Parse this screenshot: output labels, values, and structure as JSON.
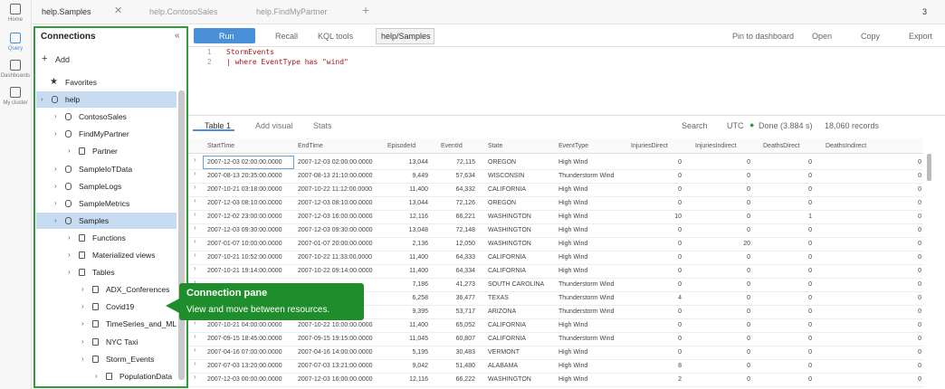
{
  "nav": [
    "Home",
    "Query",
    "Dashboards",
    "My cluster"
  ],
  "tabs": [
    "help.Samples",
    "help.ContosoSales",
    "help.FindMyPartner"
  ],
  "tab_count": "3",
  "toolbar": {
    "run": "Run",
    "recall": "Recall",
    "kql": "KQL tools",
    "scope": "help/Samples",
    "pin": "Pin to dashboard",
    "open": "Open",
    "copy": "Copy",
    "export": "Export"
  },
  "editor": {
    "line_numbers": [
      "1",
      "2"
    ],
    "lines": [
      "StormEvents",
      "| where EventType has \"wind\""
    ]
  },
  "connections": {
    "title": "Connections",
    "add": "Add",
    "tree": [
      {
        "label": "Favorites",
        "level": 0
      },
      {
        "label": "help",
        "level": 0
      },
      {
        "label": "ContosoSales",
        "level": 1
      },
      {
        "label": "FindMyPartner",
        "level": 1
      },
      {
        "label": "Partner",
        "level": 2
      },
      {
        "label": "SampleIoTData",
        "level": 1
      },
      {
        "label": "SampleLogs",
        "level": 1
      },
      {
        "label": "SampleMetrics",
        "level": 1
      },
      {
        "label": "Samples",
        "level": 1
      },
      {
        "label": "Functions",
        "level": 2
      },
      {
        "label": "Materialized views",
        "level": 2
      },
      {
        "label": "Tables",
        "level": 2
      },
      {
        "label": "ADX_Conferences",
        "level": 3
      },
      {
        "label": "Covid19",
        "level": 3
      },
      {
        "label": "TimeSeries_and_ML",
        "level": 3
      },
      {
        "label": "NYC Taxi",
        "level": 3
      },
      {
        "label": "Storm_Events",
        "level": 3
      },
      {
        "label": "PopulationData",
        "level": 4
      }
    ]
  },
  "tooltip": {
    "title": "Connection pane",
    "text": "View and move between resources."
  },
  "results": {
    "tab": "Table 1",
    "add_visual": "Add visual",
    "stats": "Stats",
    "search": "Search",
    "utc": "UTC",
    "done": "Done (3.884 s)",
    "records": "18,060 records"
  },
  "table": {
    "columns": [
      "StartTime",
      "EndTime",
      "EpisodeId",
      "EventId",
      "State",
      "EventType",
      "InjuriesDirect",
      "InjuriesIndirect",
      "DeathsDirect",
      "DeathsIndirect"
    ],
    "rows": [
      [
        "2007-12-03 02:00:00.0000",
        "2007-12-03 02:00:00.0000",
        "13,044",
        "72,115",
        "OREGON",
        "High Wind",
        "0",
        "0",
        "0",
        "0"
      ],
      [
        "2007-08-13 20:35:00.0000",
        "2007-08-13 21:10:00.0000",
        "9,449",
        "57,634",
        "WISCONSIN",
        "Thunderstorm Wind",
        "0",
        "0",
        "0",
        "0"
      ],
      [
        "2007-10-21 03:18:00.0000",
        "2007-10-22 11:12:00.0000",
        "11,400",
        "64,332",
        "CALIFORNIA",
        "High Wind",
        "0",
        "0",
        "0",
        "0"
      ],
      [
        "2007-12-03 08:10:00.0000",
        "2007-12-03 08:10:00.0000",
        "13,044",
        "72,126",
        "OREGON",
        "High Wind",
        "0",
        "0",
        "0",
        "0"
      ],
      [
        "2007-12-02 23:00:00.0000",
        "2007-12-03 16:00:00.0000",
        "12,116",
        "66,221",
        "WASHINGTON",
        "High Wind",
        "10",
        "0",
        "1",
        "0"
      ],
      [
        "2007-12-03 09:30:00.0000",
        "2007-12-03 09:30:00.0000",
        "13,048",
        "72,148",
        "WASHINGTON",
        "High Wind",
        "0",
        "0",
        "0",
        "0"
      ],
      [
        "2007-01-07 10:00:00.0000",
        "2007-01-07 20:00:00.0000",
        "2,136",
        "12,050",
        "WASHINGTON",
        "High Wind",
        "0",
        "20",
        "0",
        "0"
      ],
      [
        "2007-10-21 10:52:00.0000",
        "2007-10-22 11:33:00.0000",
        "11,400",
        "64,333",
        "CALIFORNIA",
        "High Wind",
        "0",
        "0",
        "0",
        "0"
      ],
      [
        "2007-10-21 19:14:00.0000",
        "2007-10-22 09:14:00.0000",
        "11,400",
        "64,334",
        "CALIFORNIA",
        "High Wind",
        "0",
        "0",
        "0",
        "0"
      ],
      [
        null,
        null,
        "7,186",
        "41,273",
        "SOUTH CAROLINA",
        "Thunderstorm Wind",
        "0",
        "0",
        "0",
        "0"
      ],
      [
        null,
        null,
        "6,258",
        "36,477",
        "TEXAS",
        "Thunderstorm Wind",
        "4",
        "0",
        "0",
        "0"
      ],
      [
        null,
        null,
        "9,395",
        "53,717",
        "ARIZONA",
        "Thunderstorm Wind",
        "0",
        "0",
        "0",
        "0"
      ],
      [
        "2007-10-21 04:00:00.0000",
        "2007-10-22 10:00:00.0000",
        "11,400",
        "65,052",
        "CALIFORNIA",
        "High Wind",
        "0",
        "0",
        "0",
        "0"
      ],
      [
        "2007-09-15 18:45:00.0000",
        "2007-09-15 19:15:00.0000",
        "11,045",
        "60,807",
        "CALIFORNIA",
        "Thunderstorm Wind",
        "0",
        "0",
        "0",
        "0"
      ],
      [
        "2007-04-16 07:00:00.0000",
        "2007-04-16 14:00:00.0000",
        "5,195",
        "30,483",
        "VERMONT",
        "High Wind",
        "0",
        "0",
        "0",
        "0"
      ],
      [
        "2007-07-03 13:20:00.0000",
        "2007-07-03 13:21:00.0000",
        "9,042",
        "51,480",
        "ALABAMA",
        "High Wind",
        "8",
        "0",
        "0",
        "0"
      ],
      [
        "2007-12-03 00:00:00.0000",
        "2007-12-03 16:00:00.0000",
        "12,116",
        "66,222",
        "WASHINGTON",
        "High Wind",
        "2",
        "0",
        "0",
        "0"
      ]
    ]
  }
}
